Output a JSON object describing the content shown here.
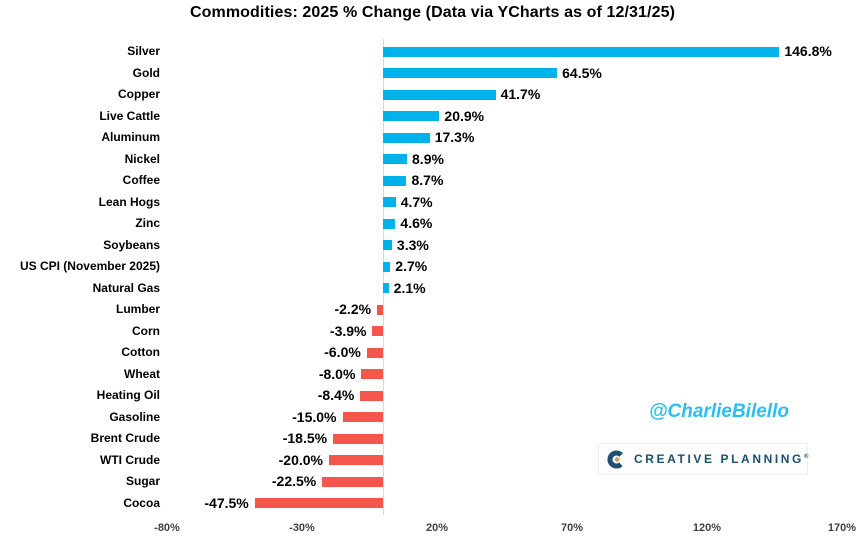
{
  "chart_data": {
    "type": "bar",
    "orientation": "horizontal",
    "title": "Commodities: 2025 % Change (Data via YCharts as of 12/31/25)",
    "categories": [
      "Silver",
      "Gold",
      "Copper",
      "Live Cattle",
      "Aluminum",
      "Nickel",
      "Coffee",
      "Lean Hogs",
      "Zinc",
      "Soybeans",
      "US CPI (November 2025)",
      "Natural Gas",
      "Lumber",
      "Corn",
      "Cotton",
      "Wheat",
      "Heating Oil",
      "Gasoline",
      "Brent Crude",
      "WTI Crude",
      "Sugar",
      "Cocoa"
    ],
    "values": [
      146.8,
      64.5,
      41.7,
      20.9,
      17.3,
      8.9,
      8.7,
      4.7,
      4.6,
      3.3,
      2.7,
      2.1,
      -2.2,
      -3.9,
      -6.0,
      -8.0,
      -8.4,
      -15.0,
      -18.5,
      -20.0,
      -22.5,
      -47.5
    ],
    "value_labels": [
      "146.8%",
      "64.5%",
      "41.7%",
      "20.9%",
      "17.3%",
      "8.9%",
      "8.7%",
      "4.7%",
      "4.6%",
      "3.3%",
      "2.7%",
      "2.1%",
      "-2.2%",
      "-3.9%",
      "-6.0%",
      "-8.0%",
      "-8.4%",
      "-15.0%",
      "-18.5%",
      "-20.0%",
      "-22.5%",
      "-47.5%"
    ],
    "x_ticks": [
      "-80%",
      "-30%",
      "20%",
      "70%",
      "120%",
      "170%"
    ],
    "x_tick_values": [
      -80,
      -30,
      20,
      70,
      120,
      170
    ],
    "xlim": [
      -80,
      170
    ],
    "positive_color": "#00B2EA",
    "negative_color": "#F5564C",
    "axis_line_color": "#D9D9D9",
    "grid": false,
    "legend": false
  },
  "watermark": {
    "handle": "@CharlieBilello",
    "color": "#29BFF2"
  },
  "logo": {
    "text": "CREATIVE PLANNING",
    "registered_mark": "®",
    "navy": "#1D4F6E",
    "gold": "#C9A469"
  }
}
